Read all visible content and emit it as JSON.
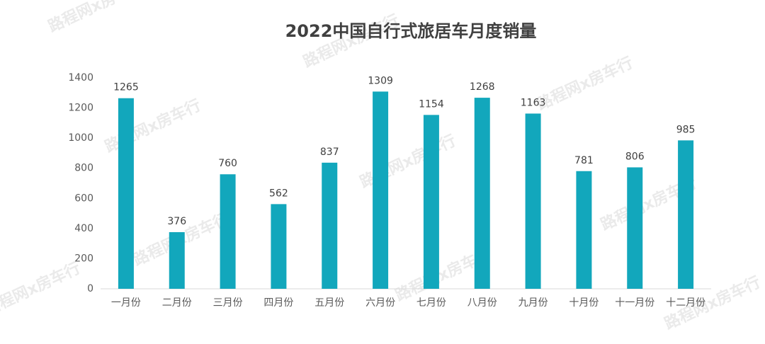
{
  "chart_data": {
    "type": "bar",
    "title": "2022中国自行式旅居车月度销量",
    "watermark": "路程网x房车行",
    "categories": [
      "一月份",
      "二月份",
      "三月份",
      "四月份",
      "五月份",
      "六月份",
      "七月份",
      "八月份",
      "九月份",
      "十月份",
      "十一月份",
      "十二月份"
    ],
    "values": [
      1265,
      376,
      760,
      562,
      837,
      1309,
      1154,
      1268,
      1163,
      781,
      806,
      985
    ],
    "color": "#12a7bc",
    "ylim": [
      0,
      1400
    ],
    "yticks": [
      0,
      200,
      400,
      600,
      800,
      1000,
      1200,
      1400
    ],
    "grid": false
  }
}
